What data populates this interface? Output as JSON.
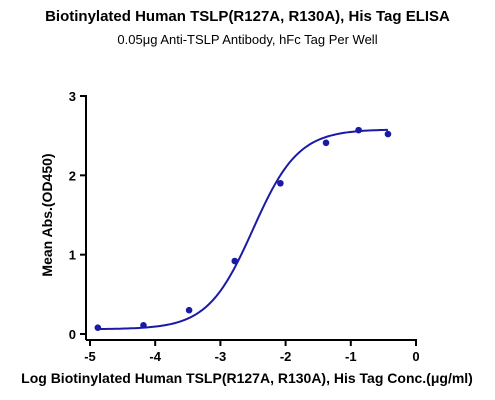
{
  "chart_data": {
    "type": "scatter",
    "title": "Biotinylated Human TSLP(R127A, R130A), His Tag ELISA",
    "subtitle": "0.05μg Anti-TSLP Antibody, hFc Tag Per Well",
    "xlabel": "Log Biotinylated Human TSLP(R127A, R130A), His Tag Conc.(μg/ml)",
    "ylabel": "Mean Abs.(OD450)",
    "xlim": [
      -5,
      0
    ],
    "ylim": [
      0,
      3
    ],
    "xticks": [
      "-5",
      "-4",
      "-3",
      "-2",
      "-1",
      "0"
    ],
    "yticks": [
      "0",
      "1",
      "2",
      "3"
    ],
    "grid": false,
    "series": [
      {
        "x": [
          -4.88,
          -4.18,
          -3.48,
          -2.78,
          -2.08,
          -1.38,
          -0.88,
          -0.43
        ],
        "y": [
          0.08,
          0.11,
          0.3,
          0.92,
          1.9,
          2.41,
          2.57,
          2.52
        ],
        "fit": "sigmoidal"
      }
    ],
    "colors": {
      "series": "#1a1aa6",
      "axis": "#000000"
    }
  }
}
